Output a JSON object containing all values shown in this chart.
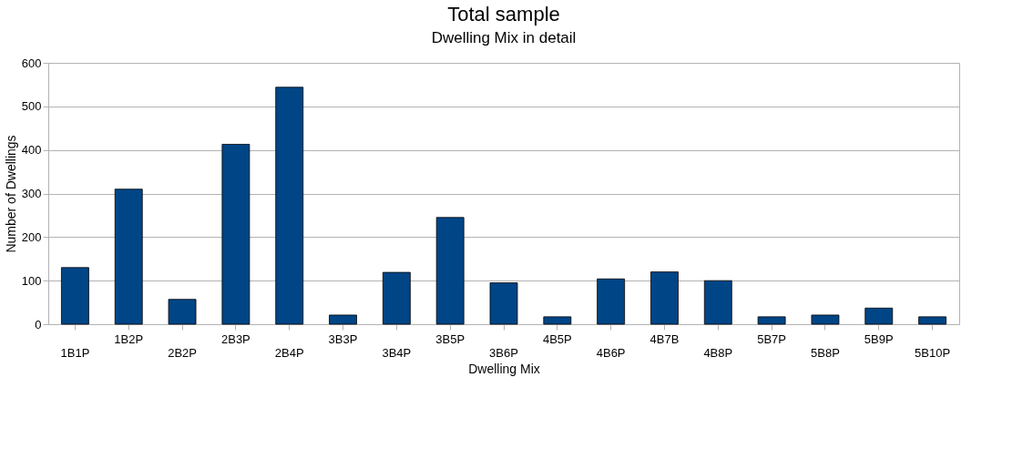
{
  "chart_data": {
    "type": "bar",
    "title": "Total sample",
    "subtitle": "Dwelling Mix in detail",
    "xlabel": "Dwelling Mix",
    "ylabel": "Number of Dwellings",
    "categories": [
      "1B1P",
      "1B2P",
      "2B2P",
      "2B3P",
      "2B4P",
      "3B3P",
      "3B4P",
      "3B5P",
      "3B6P",
      "4B5P",
      "4B6P",
      "4B7B",
      "4B8P",
      "5B7P",
      "5B8P",
      "5B9P",
      "5B10P"
    ],
    "values": [
      130,
      310,
      57,
      413,
      544,
      21,
      119,
      245,
      95,
      17,
      104,
      120,
      100,
      17,
      21,
      37,
      17
    ],
    "color": "#004586",
    "ylim": [
      0,
      600
    ],
    "yticks": [
      0,
      100,
      200,
      300,
      400,
      500,
      600
    ],
    "grid": "y"
  }
}
